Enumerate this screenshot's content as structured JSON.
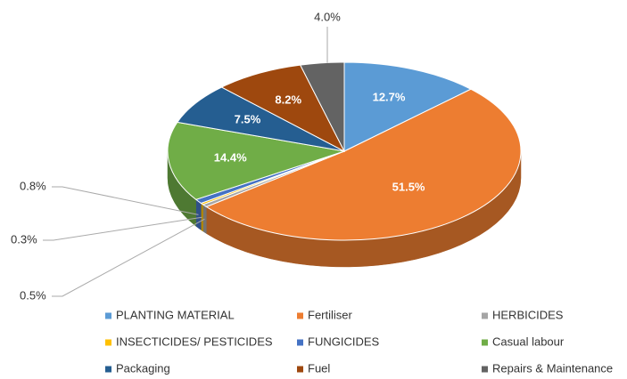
{
  "chart_data": {
    "type": "pie",
    "categories": [
      "PLANTING MATERIAL",
      "Fertiliser",
      "HERBICIDES",
      "INSECTICIDES/ PESTICIDES",
      "FUNGICIDES",
      "Casual labour",
      "Packaging",
      "Fuel",
      "Repairs & Maintenance"
    ],
    "values": [
      12.7,
      51.5,
      0.5,
      0.3,
      0.8,
      14.4,
      7.5,
      8.2,
      4.0
    ],
    "value_labels": [
      "12.7%",
      "51.5%",
      "0.5%",
      "0.3%",
      "0.8%",
      "14.4%",
      "7.5%",
      "8.2%",
      "4.0%"
    ],
    "colors": [
      "#5b9bd5",
      "#ed7d31",
      "#a5a5a5",
      "#ffc000",
      "#4472c4",
      "#70ad47",
      "#255e91",
      "#9e480e",
      "#636363"
    ],
    "legend": "bottom"
  }
}
